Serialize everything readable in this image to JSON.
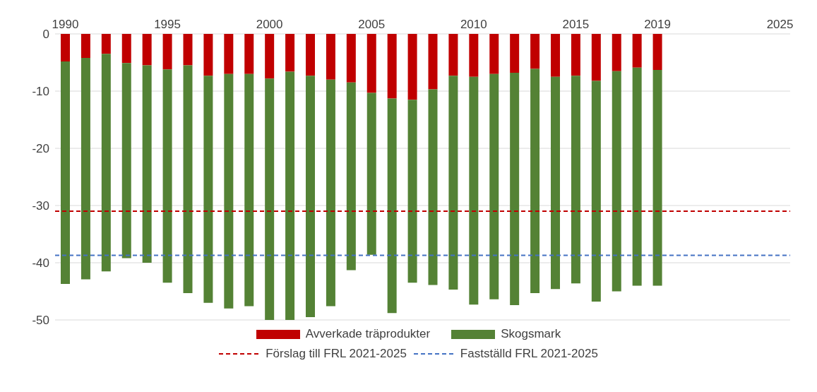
{
  "chart_data": {
    "type": "bar",
    "stacked": true,
    "categories": [
      "1990",
      null,
      null,
      null,
      null,
      "1995",
      null,
      null,
      null,
      null,
      "2000",
      null,
      null,
      null,
      null,
      "2005",
      null,
      null,
      null,
      null,
      "2010",
      null,
      null,
      null,
      null,
      "2015",
      null,
      null,
      null,
      "2019",
      null,
      null,
      null,
      null,
      null,
      "2025"
    ],
    "series": [
      {
        "name": "Avverkade träprodukter",
        "color": "#c00000",
        "values": [
          -4.8,
          -4.2,
          -3.5,
          -5.1,
          -5.5,
          -6.2,
          -5.5,
          -7.3,
          -7.0,
          -7.0,
          -7.8,
          -6.6,
          -7.3,
          -8.0,
          -8.5,
          -10.3,
          -11.3,
          -11.5,
          -9.7,
          -7.3,
          -7.5,
          -7.0,
          -6.8,
          -6.1,
          -7.5,
          -7.3,
          -8.2,
          -6.5,
          -5.9,
          -6.3,
          null,
          null,
          null,
          null,
          null,
          null
        ]
      },
      {
        "name": "Skogsmark",
        "color": "#548235",
        "values": [
          -38.9,
          -38.7,
          -38.0,
          -34.1,
          -34.5,
          -37.3,
          -39.8,
          -39.7,
          -41.0,
          -40.6,
          -42.2,
          -43.4,
          -42.2,
          -39.6,
          -32.8,
          -28.3,
          -37.5,
          -32.0,
          -34.2,
          -37.4,
          -39.8,
          -39.4,
          -40.6,
          -39.2,
          -37.1,
          -36.3,
          -38.6,
          -38.5,
          -38.1,
          -37.7,
          null,
          null,
          null,
          null,
          null,
          null
        ]
      }
    ],
    "ylim": [
      -50,
      0
    ],
    "yticks": [
      0,
      -10,
      -20,
      -30,
      -40,
      -50
    ],
    "grid": "y",
    "legend": "bottom",
    "ref_lines": [
      {
        "axis": "y",
        "value": -31.0,
        "label": "Förslag till FRL 2021-2025",
        "color": "#c00000",
        "line_style": "dashed"
      },
      {
        "axis": "y",
        "value": -38.7,
        "label": "Fastställd FRL 2021-2025",
        "color": "#4472c4",
        "line_style": "dashed"
      }
    ]
  }
}
